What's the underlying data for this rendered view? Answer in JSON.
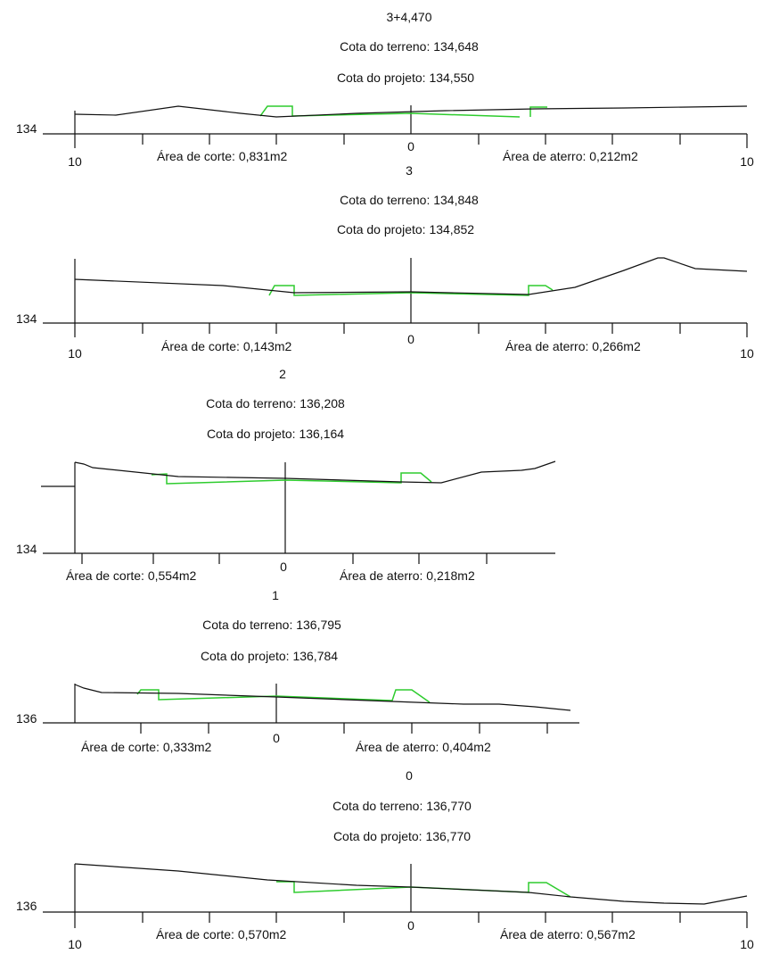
{
  "sections": [
    {
      "station": "3+4,470",
      "cota_terreno": "Cota do terreno: 134,648",
      "cota_projeto": "Cota do projeto: 134,550",
      "elevation": "134",
      "center_label": "0",
      "left_label": "10",
      "right_label": "10",
      "area_corte": "Área de corte: 0,831m2",
      "area_aterro": "Área de aterro: 0,212m2"
    },
    {
      "station": "3",
      "cota_terreno": "Cota do terreno: 134,848",
      "cota_projeto": "Cota do projeto: 134,852",
      "elevation": "134",
      "center_label": "0",
      "left_label": "10",
      "right_label": "10",
      "area_corte": "Área de corte: 0,143m2",
      "area_aterro": "Área de aterro: 0,266m2"
    },
    {
      "station": "2",
      "cota_terreno": "Cota do terreno: 136,208",
      "cota_projeto": "Cota do projeto: 136,164",
      "elevation": "134",
      "center_label": "0",
      "area_corte": "Área de corte: 0,554m2",
      "area_aterro": "Área de aterro: 0,218m2"
    },
    {
      "station": "1",
      "cota_terreno": "Cota do terreno: 136,795",
      "cota_projeto": "Cota do projeto: 136,784",
      "elevation": "136",
      "center_label": "0",
      "area_corte": "Área de corte: 0,333m2",
      "area_aterro": "Área de aterro: 0,404m2"
    },
    {
      "station": "0",
      "cota_terreno": "Cota do terreno: 136,770",
      "cota_projeto": "Cota do projeto: 136,770",
      "elevation": "136",
      "center_label": "0",
      "left_label": "10",
      "right_label": "10",
      "area_corte": "Área de corte: 0,570m2",
      "area_aterro": "Área de aterro: 0,567m2"
    }
  ],
  "colors": {
    "terrain": "#111111",
    "design": "#2ecc2e",
    "axis": "#111111",
    "background": "#ffffff"
  }
}
